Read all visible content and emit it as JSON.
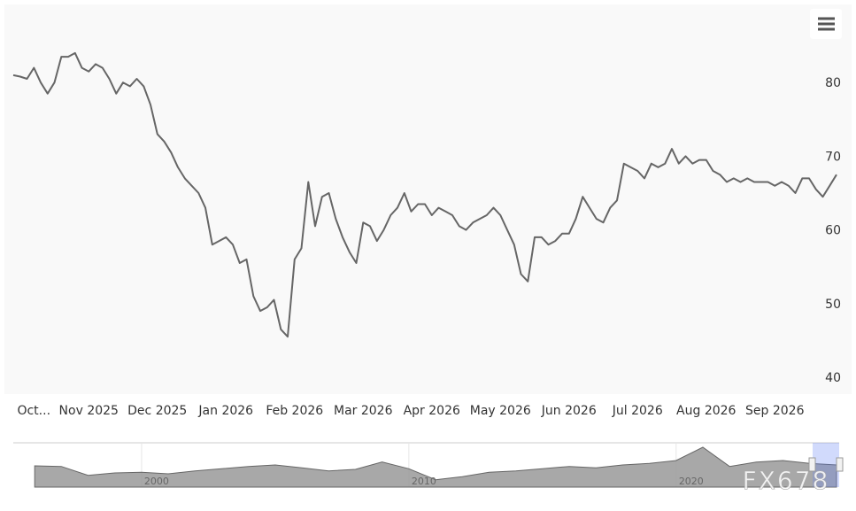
{
  "chart_data": {
    "type": "line",
    "categories": [
      null,
      null,
      null,
      "Oct...",
      null,
      null,
      null,
      null,
      null,
      null,
      null,
      "Nov 2025",
      null,
      null,
      null,
      null,
      null,
      null,
      null,
      null,
      null,
      "Dec 2025",
      null,
      null,
      null,
      null,
      null,
      null,
      null,
      null,
      null,
      "Jan 2026",
      null,
      null,
      null,
      null,
      null,
      null,
      null,
      null,
      null,
      "Feb 2026",
      null,
      null,
      null,
      null,
      null,
      null,
      null,
      null,
      null,
      "Mar 2026",
      null,
      null,
      null,
      null,
      null,
      null,
      null,
      null,
      null,
      "Apr 2026",
      null,
      null,
      null,
      null,
      null,
      null,
      null,
      null,
      null,
      "May 2026",
      null,
      null,
      null,
      null,
      null,
      null,
      null,
      null,
      null,
      "Jun 2026",
      null,
      null,
      null,
      null,
      null,
      null,
      null,
      null,
      null,
      "Jul 2026",
      null,
      null,
      null,
      null,
      null,
      null,
      null,
      null,
      null,
      "Aug 2026",
      null,
      null,
      null,
      null,
      null,
      null,
      null,
      null,
      null,
      "Sep 2026",
      null,
      null,
      null,
      null,
      null,
      null,
      null,
      null,
      null
    ],
    "series": [
      {
        "color": "#666666",
        "values": [
          81,
          80.8,
          80.5,
          82,
          80,
          78.5,
          80,
          83.5,
          83.5,
          84,
          82,
          81.5,
          82.5,
          82,
          80.5,
          78.5,
          80,
          79.5,
          80.5,
          79.5,
          77,
          73,
          72,
          70.5,
          68.5,
          67,
          66,
          65,
          63,
          58,
          58.5,
          59,
          58,
          55.5,
          56,
          51,
          49,
          49.5,
          50.5,
          46.5,
          45.5,
          56,
          57.5,
          66.5,
          60.5,
          64.5,
          65,
          61.5,
          59,
          57,
          55.5,
          61,
          60.5,
          58.5,
          60,
          62,
          63,
          65,
          62.5,
          63.5,
          63.5,
          62,
          63,
          62.5,
          62,
          60.5,
          60,
          61,
          61.5,
          62,
          63,
          62,
          60,
          58,
          54,
          53,
          59,
          59,
          58,
          58.5,
          59.5,
          59.5,
          61.5,
          64.5,
          63,
          61.5,
          61,
          63,
          64,
          69,
          68.5,
          68,
          67,
          69,
          68.5,
          69,
          71,
          69,
          70,
          69,
          69.5,
          69.5,
          68,
          67.5,
          66.5,
          67,
          66.5,
          67,
          66.5,
          66.5,
          66.5,
          66,
          66.5,
          66,
          65,
          67,
          67,
          65.5,
          64.5,
          66,
          67.5
        ]
      }
    ],
    "ylim": [
      40,
      90
    ],
    "yticks": [
      40,
      50,
      60,
      70,
      80
    ],
    "grid": false,
    "navigator": {
      "x": [
        1996,
        1997,
        1998,
        1999,
        2000,
        2001,
        2002,
        2003,
        2004,
        2005,
        2006,
        2007,
        2008,
        2009,
        2010,
        2011,
        2012,
        2013,
        2014,
        2015,
        2016,
        2017,
        2018,
        2019,
        2020,
        2021,
        2022,
        2023,
        2024,
        2025,
        2026
      ],
      "values": [
        72,
        70,
        40,
        48,
        50,
        45,
        55,
        62,
        70,
        75,
        65,
        55,
        60,
        85,
        62,
        25,
        35,
        50,
        55,
        62,
        70,
        65,
        75,
        80,
        90,
        135,
        70,
        85,
        90,
        80,
        75
      ],
      "xlim": [
        1995.2,
        2026.1
      ],
      "ylim": [
        0,
        150
      ],
      "xticks": [
        2000,
        2010,
        2020
      ],
      "color": "#999999"
    },
    "watermark": "FX678"
  }
}
